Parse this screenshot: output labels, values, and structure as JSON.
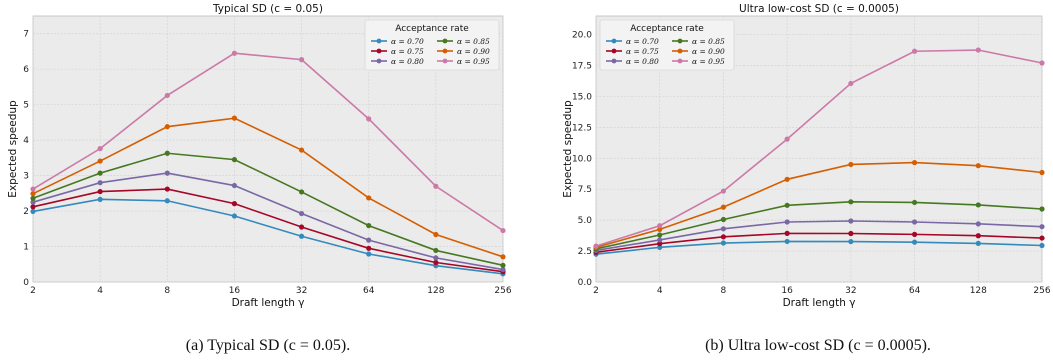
{
  "chart_data": [
    {
      "type": "line",
      "title": "Typical SD (c = 0.05)",
      "caption": "(a) Typical SD (c = 0.05).",
      "xlabel": "Draft length γ",
      "ylabel": "Expected speedup",
      "x": [
        2,
        4,
        8,
        16,
        32,
        64,
        128,
        256
      ],
      "x_tick_labels": [
        "2",
        "4",
        "8",
        "16",
        "32",
        "64",
        "128",
        "256"
      ],
      "x_scale": "log2",
      "ylim": [
        0,
        7.5
      ],
      "y_ticks": [
        0,
        1,
        2,
        3,
        4,
        5,
        6,
        7
      ],
      "y_tick_labels": [
        "0",
        "1",
        "2",
        "3",
        "4",
        "5",
        "6",
        "7"
      ],
      "grid": true,
      "legend": {
        "title": "Acceptance rate",
        "placement": "top-right"
      },
      "series": [
        {
          "name": "α = 0.70",
          "color": "#348abd",
          "values": [
            1.99,
            2.33,
            2.29,
            1.86,
            1.29,
            0.79,
            0.46,
            0.23
          ]
        },
        {
          "name": "α = 0.75",
          "color": "#a60628",
          "values": [
            2.12,
            2.55,
            2.62,
            2.21,
            1.55,
            0.95,
            0.55,
            0.29
          ]
        },
        {
          "name": "α = 0.80",
          "color": "#7a68a6",
          "values": [
            2.25,
            2.8,
            3.07,
            2.72,
            1.93,
            1.18,
            0.68,
            0.35
          ]
        },
        {
          "name": "α = 0.85",
          "color": "#467821",
          "values": [
            2.36,
            3.07,
            3.63,
            3.45,
            2.54,
            1.59,
            0.89,
            0.47
          ]
        },
        {
          "name": "α = 0.90",
          "color": "#d55e00",
          "values": [
            2.49,
            3.41,
            4.38,
            4.62,
            3.72,
            2.37,
            1.34,
            0.71
          ]
        },
        {
          "name": "α = 0.95",
          "color": "#cc79a7",
          "values": [
            2.62,
            3.76,
            5.26,
            6.45,
            6.27,
            4.6,
            2.7,
            1.45
          ]
        }
      ]
    },
    {
      "type": "line",
      "title": "Ultra low-cost SD (c = 0.0005)",
      "caption": "(b) Ultra low-cost SD (c = 0.0005).",
      "xlabel": "Draft length γ",
      "ylabel": "Expected speedup",
      "x": [
        2,
        4,
        8,
        16,
        32,
        64,
        128,
        256
      ],
      "x_tick_labels": [
        "2",
        "4",
        "8",
        "16",
        "32",
        "64",
        "128",
        "256"
      ],
      "x_scale": "log2",
      "ylim": [
        0,
        21.5
      ],
      "y_ticks": [
        0,
        2.5,
        5,
        7.5,
        10,
        12.5,
        15,
        17.5,
        20
      ],
      "y_tick_labels": [
        "0.0",
        "2.5",
        "5.0",
        "7.5",
        "10.0",
        "12.5",
        "15.0",
        "17.5",
        "20.0"
      ],
      "grid": true,
      "legend": {
        "title": "Acceptance rate",
        "placement": "top-left"
      },
      "series": [
        {
          "name": "α = 0.70",
          "color": "#348abd",
          "values": [
            2.25,
            2.8,
            3.15,
            3.28,
            3.27,
            3.22,
            3.12,
            2.95
          ]
        },
        {
          "name": "α = 0.75",
          "color": "#a60628",
          "values": [
            2.4,
            3.1,
            3.65,
            3.93,
            3.92,
            3.85,
            3.74,
            3.55
          ]
        },
        {
          "name": "α = 0.80",
          "color": "#7a68a6",
          "values": [
            2.55,
            3.4,
            4.3,
            4.85,
            4.93,
            4.85,
            4.7,
            4.47
          ]
        },
        {
          "name": "α = 0.85",
          "color": "#467821",
          "values": [
            2.68,
            3.8,
            5.05,
            6.2,
            6.48,
            6.43,
            6.23,
            5.9
          ]
        },
        {
          "name": "α = 0.90",
          "color": "#d55e00",
          "values": [
            2.8,
            4.25,
            6.05,
            8.3,
            9.5,
            9.65,
            9.4,
            8.85
          ]
        },
        {
          "name": "α = 0.95",
          "color": "#cc79a7",
          "values": [
            2.9,
            4.55,
            7.35,
            11.55,
            16.05,
            18.65,
            18.75,
            17.7
          ]
        }
      ]
    }
  ]
}
